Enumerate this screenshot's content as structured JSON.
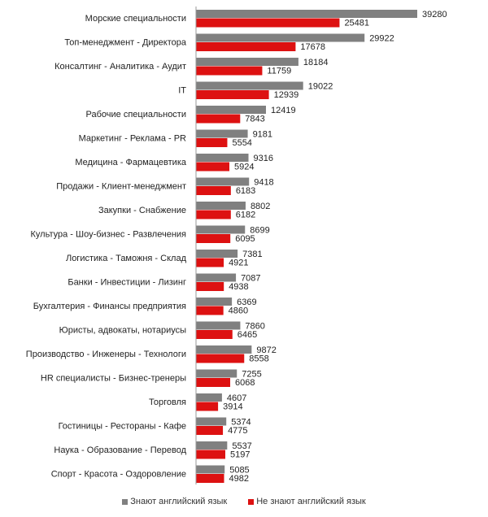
{
  "chart_data": {
    "type": "bar",
    "orientation": "horizontal",
    "title": "",
    "xlabel": "",
    "ylabel": "",
    "xlim": [
      0,
      40000
    ],
    "grid": false,
    "legend_position": "bottom",
    "categories": [
      "Морские специальности",
      "Топ-менеджмент  - Директора",
      "Консалтинг - Аналитика - Аудит",
      "IT",
      "Рабочие специальности",
      "Маркетинг - Реклама - PR",
      "Медицина  - Фармацевтика",
      "Продажи - Клиент-менеджмент",
      "Закупки - Снабжение",
      "Культура - Шоу-бизнес - Развлечения",
      "Логистика - Таможня - Склад",
      "Банки - Инвестиции  - Лизинг",
      "Бухгалтерия - Финансы предприятия",
      "Юристы, адвокаты, нотариусы",
      "Производство - Инженеры  - Технологи",
      "HR специалисты - Бизнес-тренеры",
      "Торговля",
      "Гостиницы - Рестораны - Кафе",
      "Наука - Образование - Перевод",
      "Спорт - Красота - Оздоровление"
    ],
    "series": [
      {
        "name": "Знают английский язык",
        "color": "#808080",
        "values": [
          39280,
          29922,
          18184,
          19022,
          12419,
          9181,
          9316,
          9418,
          8802,
          8699,
          7381,
          7087,
          6369,
          7860,
          9872,
          7255,
          4607,
          5374,
          5537,
          5085
        ]
      },
      {
        "name": "Не знают английский язык",
        "color": "#dd1111",
        "values": [
          25481,
          17678,
          11759,
          12939,
          7843,
          5554,
          5924,
          6183,
          6182,
          6095,
          4921,
          4938,
          4860,
          6465,
          8558,
          6068,
          3914,
          4775,
          5197,
          4982
        ]
      }
    ]
  }
}
